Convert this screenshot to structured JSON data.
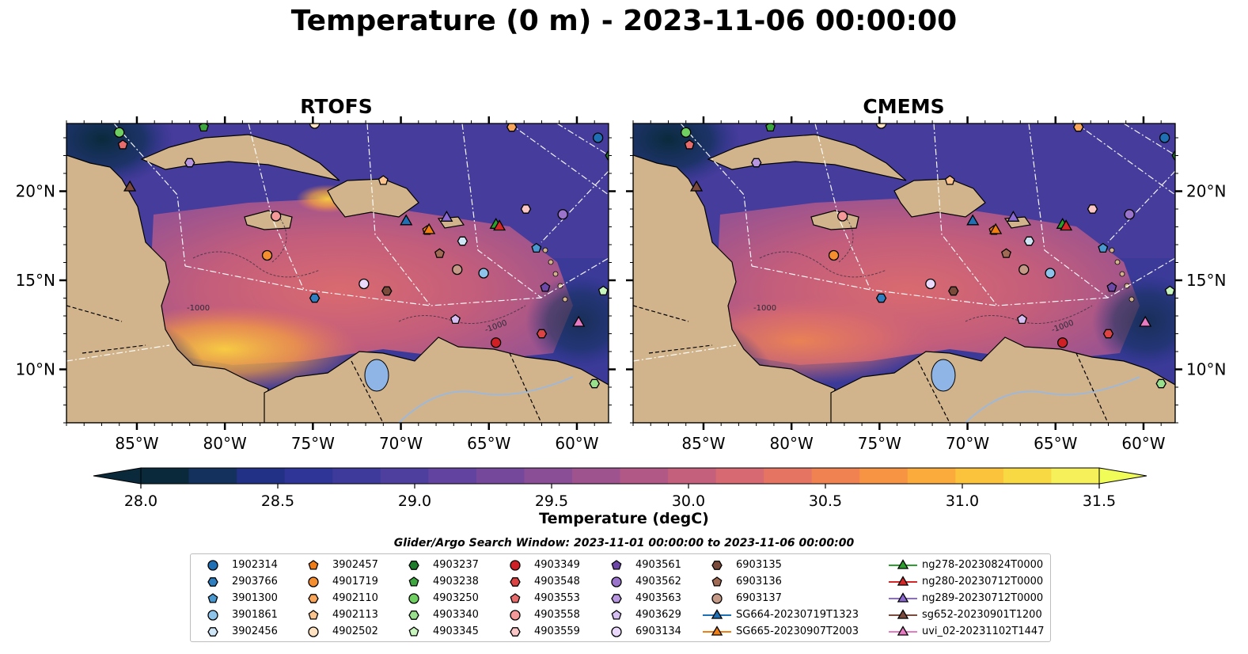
{
  "figure": {
    "title": "Temperature (0 m) - 2023-11-06 00:00:00",
    "search_window": "Glider/Argo Search Window: 2023-11-01 00:00:00 to 2023-11-06 00:00:00"
  },
  "chart_data": {
    "type": "heatmap",
    "panels": [
      {
        "name": "RTOFS",
        "warm_pool": "strong"
      },
      {
        "name": "CMEMS",
        "warm_pool": "weak"
      }
    ],
    "x_ticks": [
      {
        "value": -85,
        "label": "85°W"
      },
      {
        "value": -80,
        "label": "80°W"
      },
      {
        "value": -75,
        "label": "75°W"
      },
      {
        "value": -70,
        "label": "70°W"
      },
      {
        "value": -65,
        "label": "65°W"
      },
      {
        "value": -60,
        "label": "60°W"
      }
    ],
    "y_ticks": [
      {
        "value": 20,
        "label": "20°N"
      },
      {
        "value": 15,
        "label": "15°N"
      },
      {
        "value": 10,
        "label": "10°N"
      }
    ],
    "xlim": [
      -89,
      -58.2
    ],
    "ylim": [
      7,
      23.8
    ],
    "colorbar": {
      "label": "Temperature (degC)",
      "min": 28.0,
      "max": 31.5,
      "ticks": [
        "28.0",
        "28.5",
        "29.0",
        "29.5",
        "30.0",
        "30.5",
        "31.0",
        "31.5"
      ],
      "colors": [
        "#0a2a3c",
        "#13315c",
        "#223185",
        "#2e3596",
        "#3d3a9c",
        "#4e3f9f",
        "#62439f",
        "#76489c",
        "#8a4e97",
        "#9e538f",
        "#b25886",
        "#c45f7c",
        "#d66972",
        "#e57463",
        "#f08252",
        "#f79444",
        "#fbaa3c",
        "#fbc23b",
        "#f8d944",
        "#f6f15a"
      ],
      "extend": "both"
    },
    "contour_labels": [
      "-1000",
      "-1000"
    ],
    "markers": [
      {
        "id": "1902314",
        "color": "#1f6fb4",
        "shape": "circle",
        "lon": -58.8,
        "lat": 23.0
      },
      {
        "id": "2903766",
        "color": "#2f7fc0",
        "shape": "hexagon",
        "lon": -74.9,
        "lat": 14.0
      },
      {
        "id": "3901300",
        "color": "#4a98d0",
        "shape": "pentagon",
        "lon": -62.3,
        "lat": 16.8
      },
      {
        "id": "3901861",
        "color": "#8fc4ea",
        "shape": "circle",
        "lon": -65.3,
        "lat": 15.4
      },
      {
        "id": "3902456",
        "color": "#cfe6f7",
        "shape": "hexagon",
        "lon": -66.5,
        "lat": 17.2
      },
      {
        "id": "3902457",
        "color": "#ee7c18",
        "shape": "pentagon",
        "lon": -68.5,
        "lat": 17.8
      },
      {
        "id": "4901719",
        "color": "#f58e2e",
        "shape": "circle",
        "lon": -77.6,
        "lat": 16.4
      },
      {
        "id": "4902110",
        "color": "#f9a65b",
        "shape": "hexagon",
        "lon": -63.7,
        "lat": 23.6
      },
      {
        "id": "4902113",
        "color": "#fbc48e",
        "shape": "pentagon",
        "lon": -71.0,
        "lat": 20.6
      },
      {
        "id": "4902502",
        "color": "#fde1c1",
        "shape": "circle",
        "lon": -74.9,
        "lat": 23.8
      },
      {
        "id": "4903237",
        "color": "#1e7d2b",
        "shape": "hexagon",
        "lon": -58.1,
        "lat": 22.0
      },
      {
        "id": "4903238",
        "color": "#3da63f",
        "shape": "pentagon",
        "lon": -81.2,
        "lat": 23.6
      },
      {
        "id": "4903250",
        "color": "#6fcf60",
        "shape": "circle",
        "lon": -86.0,
        "lat": 23.3
      },
      {
        "id": "4903340",
        "color": "#98e08b",
        "shape": "hexagon",
        "lon": -59.0,
        "lat": 9.2
      },
      {
        "id": "4903345",
        "color": "#c8f5bd",
        "shape": "pentagon",
        "lon": -58.5,
        "lat": 14.4
      },
      {
        "id": "4903349",
        "color": "#cf2026",
        "shape": "circle",
        "lon": -64.6,
        "lat": 11.5
      },
      {
        "id": "4903548",
        "color": "#dc4444",
        "shape": "hexagon",
        "lon": -62.0,
        "lat": 12.0
      },
      {
        "id": "4903553",
        "color": "#e96c6c",
        "shape": "pentagon",
        "lon": -85.8,
        "lat": 22.6
      },
      {
        "id": "4903558",
        "color": "#f4999a",
        "shape": "circle",
        "lon": -77.1,
        "lat": 18.6
      },
      {
        "id": "4903559",
        "color": "#fac6c6",
        "shape": "hexagon",
        "lon": -62.9,
        "lat": 19.0
      },
      {
        "id": "4903561",
        "color": "#6d48a8",
        "shape": "pentagon",
        "lon": -61.8,
        "lat": 14.6
      },
      {
        "id": "4903562",
        "color": "#9a74cb",
        "shape": "circle",
        "lon": -60.8,
        "lat": 18.7
      },
      {
        "id": "4903563",
        "color": "#b897e0",
        "shape": "hexagon",
        "lon": -82.0,
        "lat": 21.6
      },
      {
        "id": "4903629",
        "color": "#d6bff2",
        "shape": "pentagon",
        "lon": -66.9,
        "lat": 12.8
      },
      {
        "id": "6903134",
        "color": "#ead9fb",
        "shape": "circle",
        "lon": -72.1,
        "lat": 14.8
      },
      {
        "id": "6903135",
        "color": "#7a4b3b",
        "shape": "hexagon",
        "lon": -70.8,
        "lat": 14.4
      },
      {
        "id": "6903136",
        "color": "#a06a55",
        "shape": "pentagon",
        "lon": -67.8,
        "lat": 16.5
      },
      {
        "id": "6903137",
        "color": "#c49a87",
        "shape": "circle",
        "lon": -66.8,
        "lat": 15.6
      },
      {
        "id": "SG664-20230719T1323",
        "color": "#1f6fb4",
        "shape": "triangle",
        "lon": -69.7,
        "lat": 18.3
      },
      {
        "id": "SG665-20230907T2003",
        "color": "#f07f13",
        "shape": "triangle",
        "lon": -68.4,
        "lat": 17.8
      },
      {
        "id": "ng278-20230824T0000",
        "color": "#2ca02c",
        "shape": "triangle",
        "lon": -64.6,
        "lat": 18.1
      },
      {
        "id": "ng280-20230712T0000",
        "color": "#d62728",
        "shape": "triangle",
        "lon": -64.4,
        "lat": 18.0
      },
      {
        "id": "ng289-20230712T0000",
        "color": "#8c6ad2",
        "shape": "triangle",
        "lon": -67.4,
        "lat": 18.5
      },
      {
        "id": "sg652-20230901T1200",
        "color": "#7b4a3d",
        "shape": "triangle",
        "lon": -85.4,
        "lat": 20.2
      },
      {
        "id": "uvi_02-20231102T1447",
        "color": "#e77ac2",
        "shape": "triangle",
        "lon": -59.9,
        "lat": 12.6
      }
    ]
  }
}
